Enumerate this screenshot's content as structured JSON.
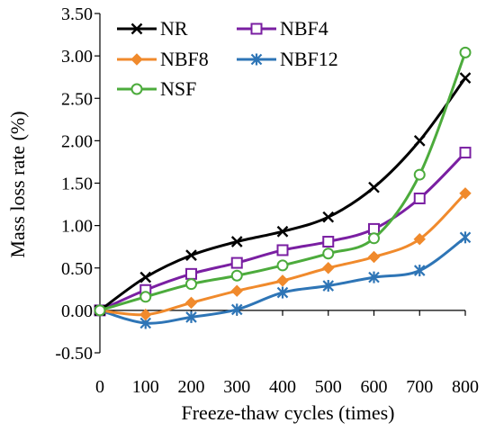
{
  "chart_data": {
    "type": "line",
    "title": "",
    "xlabel": "Freeze-thaw cycles  (times)",
    "ylabel": "Mass loss rate  (%)",
    "x": [
      0,
      100,
      200,
      300,
      400,
      500,
      600,
      700,
      800
    ],
    "x_tick_labels": [
      "0",
      "100",
      "200",
      "300",
      "400",
      "500",
      "600",
      "700",
      "800"
    ],
    "y_tick_labels": [
      "-0.50",
      "0.00",
      "0.50",
      "1.00",
      "1.50",
      "2.00",
      "2.50",
      "3.00",
      "3.50"
    ],
    "xlim": [
      0,
      800
    ],
    "ylim": [
      -0.5,
      3.5
    ],
    "grid": false,
    "legend_position": "top-left",
    "series": [
      {
        "name": "NR",
        "color": "#000000",
        "marker": "x-mark",
        "values": [
          0.0,
          0.39,
          0.65,
          0.81,
          0.93,
          1.1,
          1.45,
          2.0,
          2.74
        ]
      },
      {
        "name": "NBF4",
        "color": "#7a1fa2",
        "marker": "open-square",
        "values": [
          0.0,
          0.24,
          0.43,
          0.56,
          0.71,
          0.81,
          0.96,
          1.32,
          1.86
        ]
      },
      {
        "name": "NBF8",
        "color": "#f08a2c",
        "marker": "filled-diamond",
        "values": [
          0.0,
          -0.05,
          0.09,
          0.23,
          0.35,
          0.5,
          0.63,
          0.84,
          1.38
        ]
      },
      {
        "name": "NBF12",
        "color": "#2e75b6",
        "marker": "asterisk",
        "values": [
          0.0,
          -0.15,
          -0.08,
          0.01,
          0.21,
          0.29,
          0.39,
          0.47,
          0.86
        ]
      },
      {
        "name": "NSF",
        "color": "#4cab3c",
        "marker": "open-circle",
        "values": [
          0.0,
          0.16,
          0.31,
          0.41,
          0.53,
          0.67,
          0.85,
          1.6,
          3.04
        ]
      }
    ]
  }
}
